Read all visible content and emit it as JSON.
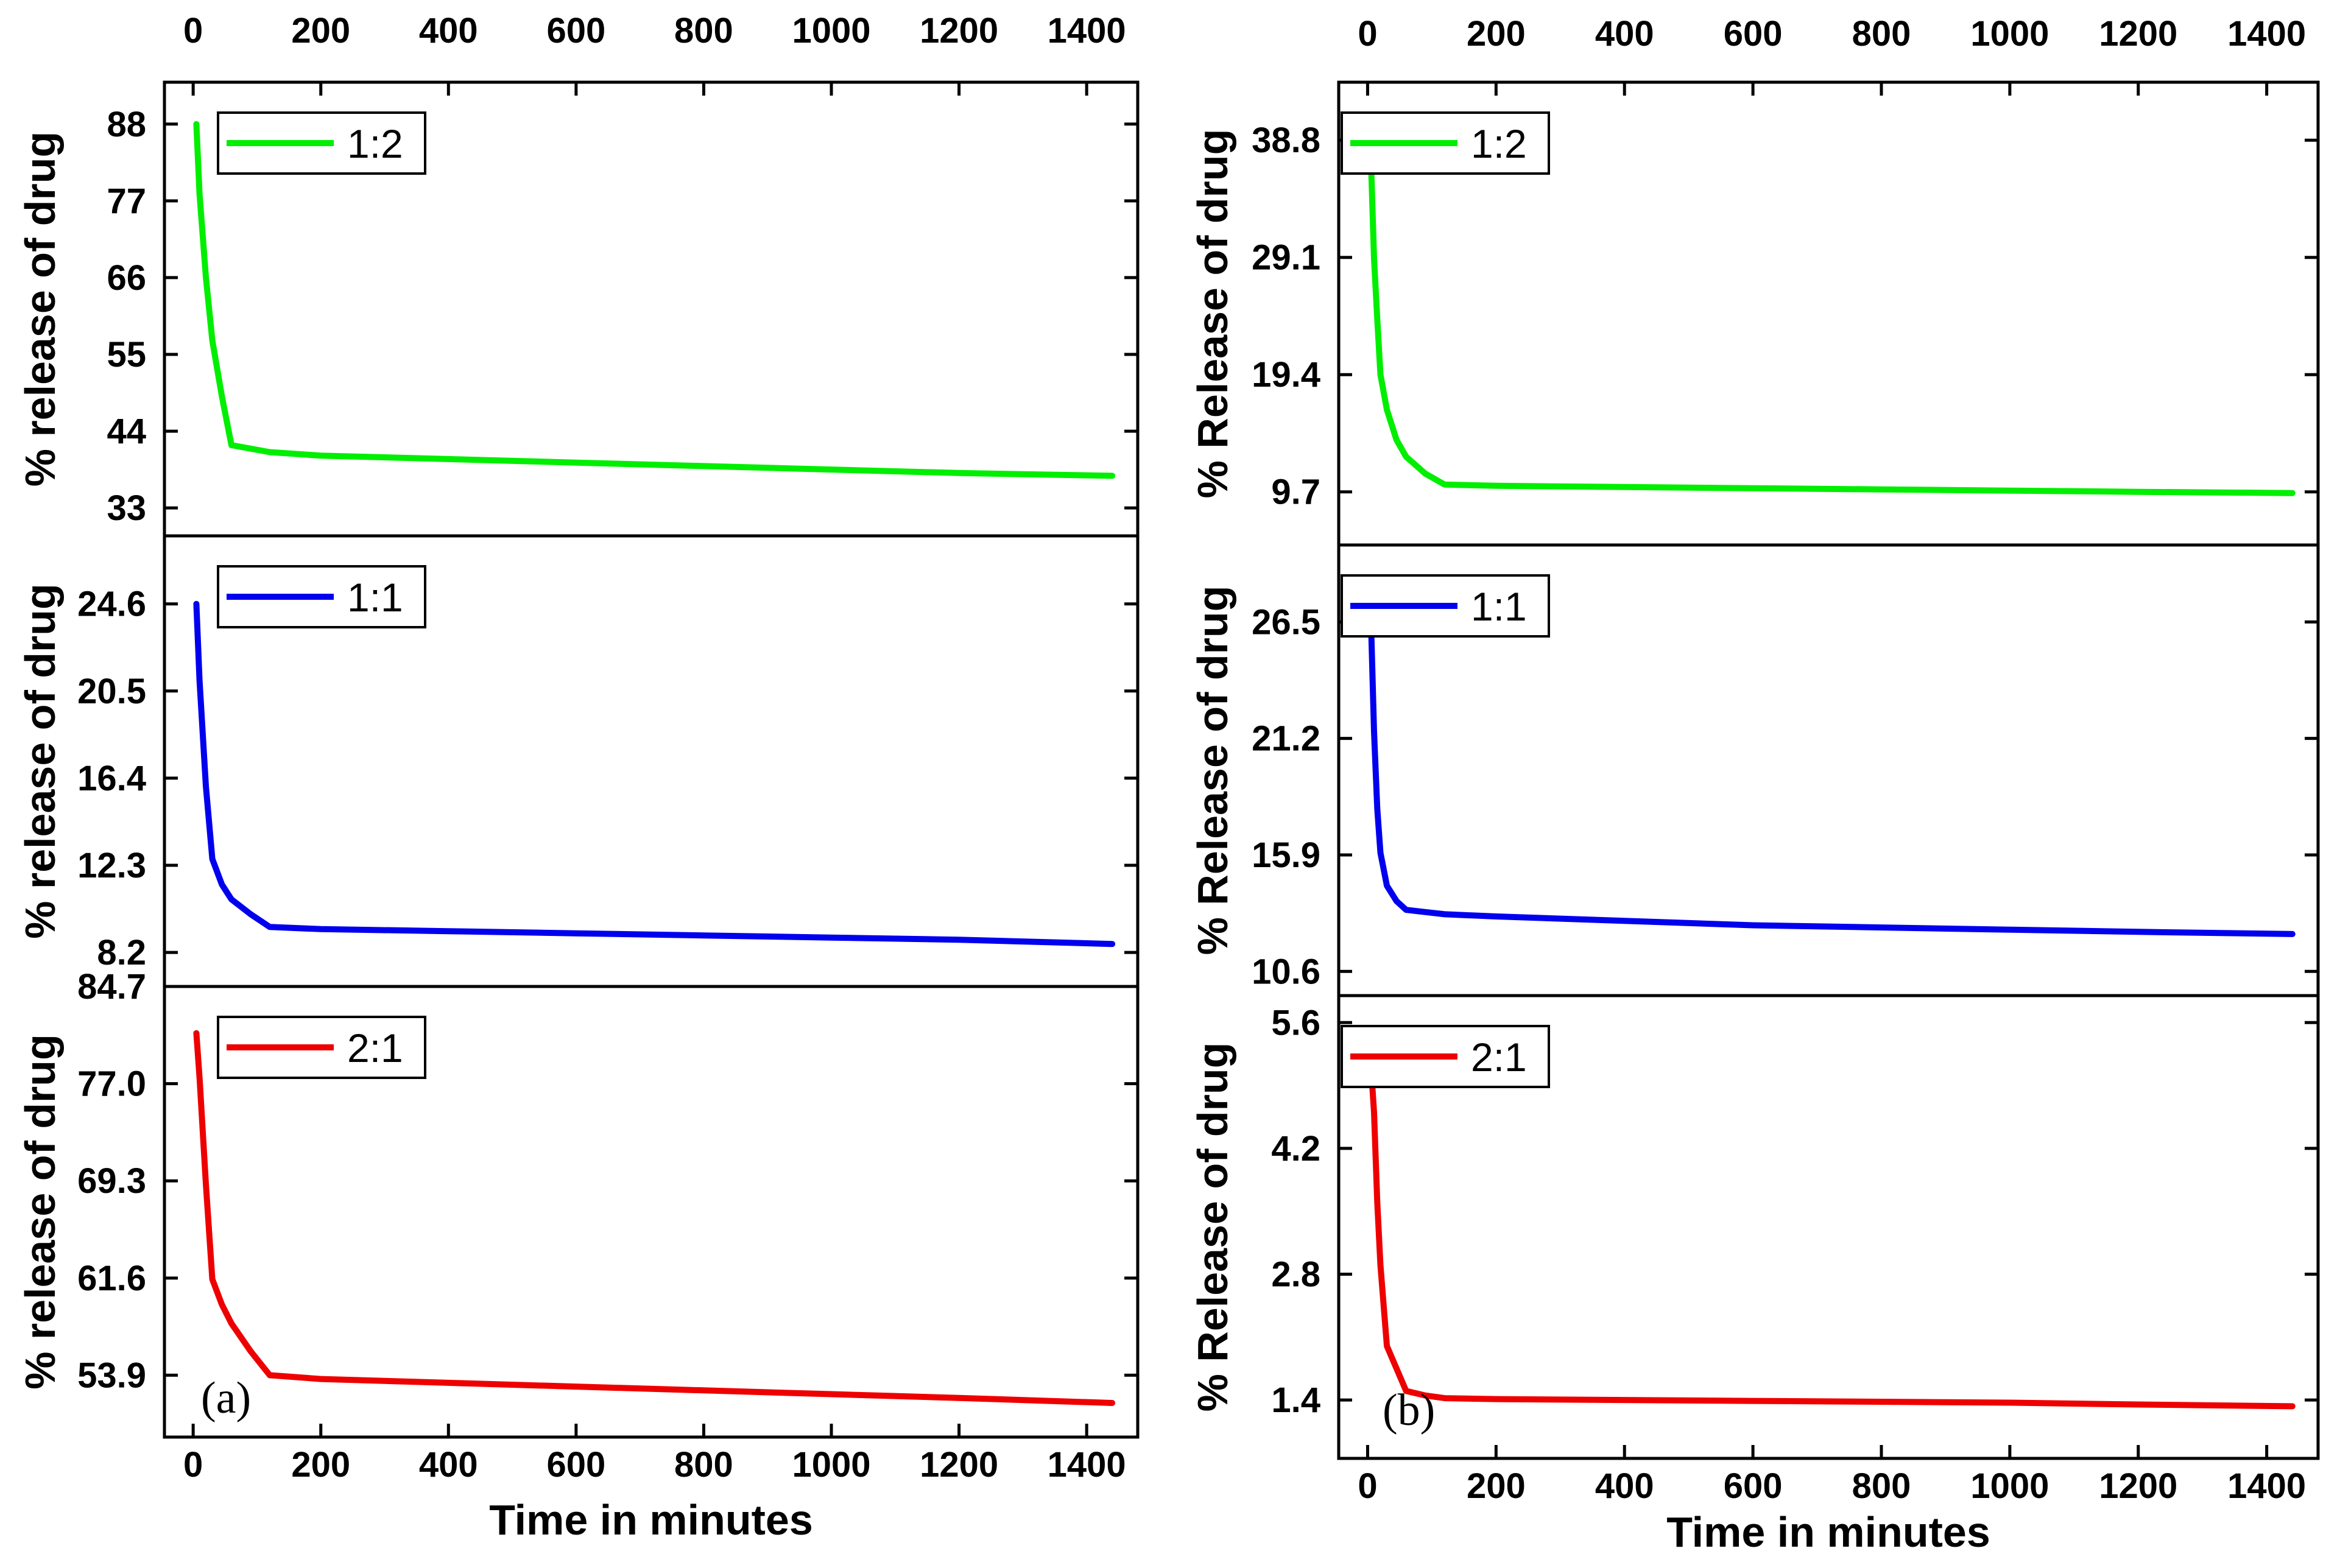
{
  "chart_data": [
    {
      "id": "a",
      "type": "line",
      "panel_label": "(a)",
      "xlabel": "Time in minutes",
      "x_ticks": [
        0,
        200,
        400,
        600,
        800,
        1000,
        1200,
        1400
      ],
      "xlim": [
        -45,
        1480
      ],
      "subplots": [
        {
          "legend": "1:2",
          "color": "#00ee00",
          "ylabel": "% release of drug",
          "y_ticks": [
            "33",
            "44",
            "55",
            "66",
            "77",
            "88"
          ],
          "ylim": [
            29,
            94
          ],
          "x": [
            5,
            10,
            20,
            30,
            45,
            60,
            120,
            200,
            400,
            600,
            800,
            1000,
            1200,
            1440
          ],
          "y": [
            88,
            78,
            66,
            57,
            49,
            42,
            41,
            40.5,
            40,
            39.5,
            39,
            38.5,
            38,
            37.6
          ]
        },
        {
          "legend": "1:1",
          "color": "#0000ee",
          "ylabel": "% release of drug",
          "y_ticks": [
            "8.2",
            "12.3",
            "16.4",
            "20.5",
            "24.6"
          ],
          "ylim": [
            6.6,
            27.8
          ],
          "x": [
            5,
            10,
            20,
            30,
            45,
            60,
            90,
            120,
            200,
            400,
            600,
            800,
            1000,
            1200,
            1440
          ],
          "y": [
            24.6,
            21,
            16,
            12.6,
            11.4,
            10.7,
            10,
            9.4,
            9.3,
            9.2,
            9.1,
            9.0,
            8.9,
            8.8,
            8.6
          ]
        },
        {
          "legend": "2:1",
          "color": "#ee0000",
          "ylabel": "% release of drug",
          "y_ticks": [
            "53.9",
            "61.6",
            "69.3",
            "77.0",
            "84.7"
          ],
          "ylim": [
            49,
            84.7
          ],
          "x": [
            5,
            10,
            20,
            30,
            45,
            60,
            90,
            120,
            200,
            400,
            600,
            800,
            1000,
            1200,
            1440
          ],
          "y": [
            81,
            77.5,
            69,
            61.5,
            59.5,
            58,
            55.8,
            53.9,
            53.6,
            53.3,
            53.0,
            52.7,
            52.4,
            52.1,
            51.7
          ]
        }
      ]
    },
    {
      "id": "b",
      "type": "line",
      "panel_label": "(b)",
      "xlabel": "Time in minutes",
      "x_ticks": [
        0,
        200,
        400,
        600,
        800,
        1000,
        1200,
        1400
      ],
      "xlim": [
        -45,
        1480
      ],
      "subplots": [
        {
          "legend": "1:2",
          "color": "#00ee00",
          "ylabel": "% Release of drug",
          "y_ticks": [
            "9.7",
            "19.4",
            "29.1",
            "38.8"
          ],
          "ylim": [
            5.3,
            43.6
          ],
          "x": [
            5,
            10,
            15,
            20,
            30,
            45,
            60,
            90,
            120,
            200,
            400,
            600,
            800,
            1000,
            1200,
            1440
          ],
          "y": [
            37.5,
            29,
            24,
            19.4,
            16.5,
            14,
            12.6,
            11.2,
            10.3,
            10.2,
            10.1,
            10.0,
            9.9,
            9.8,
            9.7,
            9.6
          ]
        },
        {
          "legend": "1:1",
          "color": "#0000ee",
          "ylabel": "% Release of drug",
          "y_ticks": [
            "10.6",
            "15.9",
            "21.2",
            "26.5"
          ],
          "ylim": [
            9.5,
            30
          ],
          "x": [
            5,
            10,
            15,
            20,
            30,
            45,
            60,
            90,
            120,
            200,
            400,
            600,
            800,
            1000,
            1200,
            1440
          ],
          "y": [
            26.8,
            21.5,
            18,
            16,
            14.5,
            13.8,
            13.4,
            13.3,
            13.2,
            13.1,
            12.9,
            12.7,
            12.6,
            12.5,
            12.4,
            12.3
          ]
        },
        {
          "legend": "2:1",
          "color": "#ee0000",
          "ylabel": "% Release of drug",
          "y_ticks": [
            "1.4",
            "2.8",
            "4.2",
            "5.6"
          ],
          "ylim": [
            0.75,
            5.9
          ],
          "x": [
            5,
            10,
            15,
            20,
            30,
            45,
            60,
            90,
            120,
            200,
            400,
            600,
            800,
            1000,
            1200,
            1440
          ],
          "y": [
            5.15,
            4.6,
            3.6,
            2.9,
            2.0,
            1.75,
            1.5,
            1.45,
            1.42,
            1.41,
            1.4,
            1.39,
            1.38,
            1.37,
            1.35,
            1.33
          ]
        }
      ]
    }
  ]
}
